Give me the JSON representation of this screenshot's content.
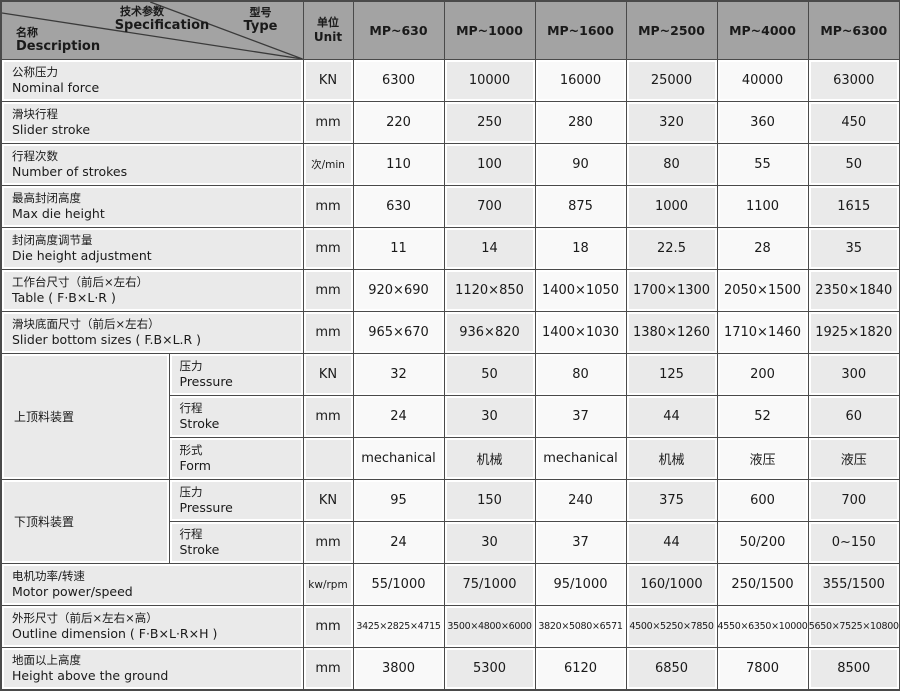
{
  "colors": {
    "header_bg": "#a3a3a3",
    "cell_bg": "#eaeaea",
    "cell_alt": "#f9f9f9",
    "border": "#4a4a4a",
    "text": "#1a1a1a"
  },
  "header": {
    "spec": {
      "zh": "技术参数",
      "en": "Specification"
    },
    "type": {
      "zh": "型号",
      "en": "Type"
    },
    "name": {
      "zh": "名称",
      "en": "Description"
    },
    "unit": {
      "zh": "单位",
      "en": "Unit"
    },
    "models": [
      "MP~630",
      "MP~1000",
      "MP~1600",
      "MP~2500",
      "MP~4000",
      "MP~6300"
    ]
  },
  "rows": [
    {
      "zh": "公称压力",
      "en": "Nominal force",
      "unit": "KN",
      "values": [
        "6300",
        "10000",
        "16000",
        "25000",
        "40000",
        "63000"
      ]
    },
    {
      "zh": "滑块行程",
      "en": "Slider stroke",
      "unit": "mm",
      "values": [
        "220",
        "250",
        "280",
        "320",
        "360",
        "450"
      ]
    },
    {
      "zh": "行程次数",
      "en": "Number of strokes",
      "unit": "次/min",
      "values": [
        "110",
        "100",
        "90",
        "80",
        "55",
        "50"
      ]
    },
    {
      "zh": "最高封闭高度",
      "en": "Max die height",
      "unit": "mm",
      "values": [
        "630",
        "700",
        "875",
        "1000",
        "1100",
        "1615"
      ]
    },
    {
      "zh": "封闭高度调节量",
      "en": "Die height adjustment",
      "unit": "mm",
      "values": [
        "11",
        "14",
        "18",
        "22.5",
        "28",
        "35"
      ]
    },
    {
      "zh": "工作台尺寸（前后×左右）",
      "en": "Table ( F·B×L·R )",
      "unit": "mm",
      "values": [
        "920×690",
        "1120×850",
        "1400×1050",
        "1700×1300",
        "2050×1500",
        "2350×1840"
      ]
    },
    {
      "zh": "滑块底面尺寸（前后×左右）",
      "en": "Slider bottom sizes ( F.B×L.R )",
      "unit": "mm",
      "values": [
        "965×670",
        "936×820",
        "1400×1030",
        "1380×1260",
        "1710×1460",
        "1925×1820"
      ]
    },
    {
      "group": "上顶料装置",
      "group_span": 3,
      "sub": true,
      "zh": "压力",
      "en": "Pressure",
      "unit": "KN",
      "values": [
        "32",
        "50",
        "80",
        "125",
        "200",
        "300"
      ]
    },
    {
      "sub": true,
      "zh": "行程",
      "en": "Stroke",
      "unit": "mm",
      "values": [
        "24",
        "30",
        "37",
        "44",
        "52",
        "60"
      ]
    },
    {
      "sub": true,
      "zh": "形式",
      "en": "Form",
      "unit": "",
      "values": [
        "mechanical",
        "机械",
        "mechanical",
        "机械",
        "液压",
        "液压"
      ]
    },
    {
      "group": "下顶料装置",
      "group_span": 2,
      "sub": true,
      "zh": "压力",
      "en": "Pressure",
      "unit": "KN",
      "values": [
        "95",
        "150",
        "240",
        "375",
        "600",
        "700"
      ]
    },
    {
      "sub": true,
      "zh": "行程",
      "en": "Stroke",
      "unit": "mm",
      "values": [
        "24",
        "30",
        "37",
        "44",
        "50/200",
        "0~150"
      ]
    },
    {
      "zh": "电机功率/转速",
      "en": "Motor power/speed",
      "unit": "kw/rpm",
      "values": [
        "55/1000",
        "75/1000",
        "95/1000",
        "160/1000",
        "250/1500",
        "355/1500"
      ]
    },
    {
      "zh": "外形尺寸（前后×左右×高）",
      "en": "Outline dimension ( F·B×L·R×H )",
      "unit": "mm",
      "values": [
        "3425×2825×4715",
        "3500×4800×6000",
        "3820×5080×6571",
        "4500×5250×7850",
        "4550×6350×10000",
        "5650×7525×10800"
      ]
    },
    {
      "zh": "地面以上高度",
      "en": "Height above the ground",
      "unit": "mm",
      "values": [
        "3800",
        "5300",
        "6120",
        "6850",
        "7800",
        "8500"
      ]
    }
  ]
}
